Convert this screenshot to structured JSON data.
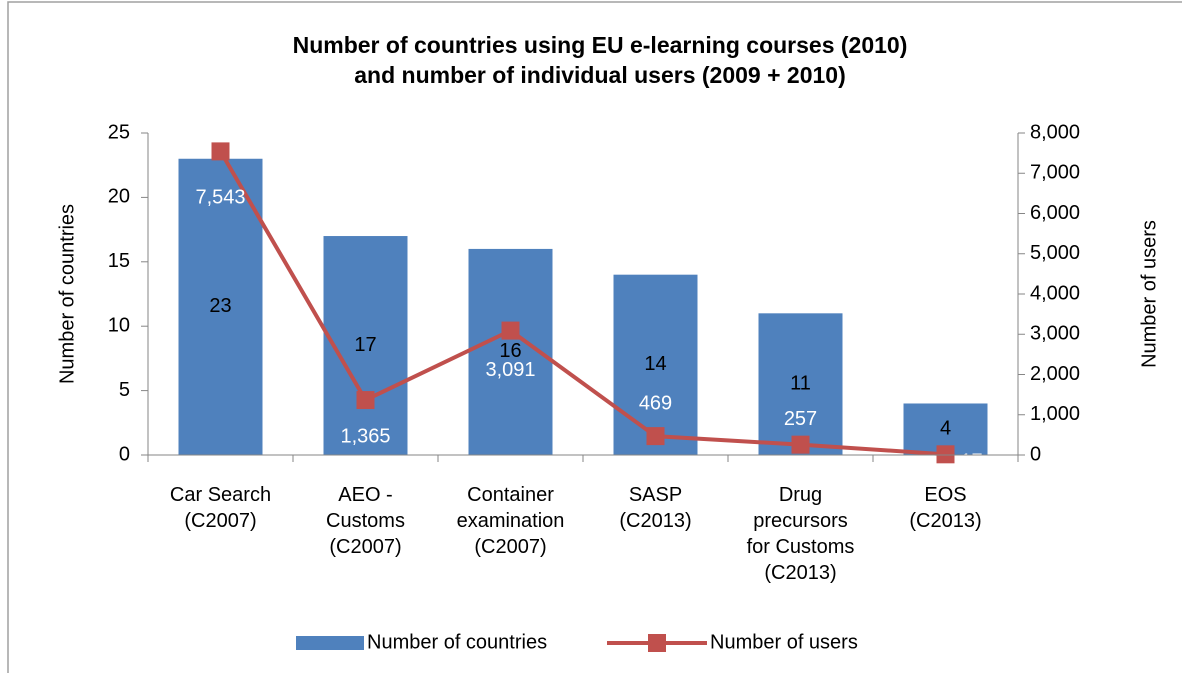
{
  "chart_data": {
    "type": "bar-line",
    "title": "Number of countries using EU e-learning courses (2010)\nand number of individual users (2009 + 2010)",
    "categories": [
      "Car Search\n(C2007)",
      "AEO -\nCustoms\n(C2007)",
      "Container\nexamination\n(C2007)",
      "SASP\n(C2013)",
      "Drug\nprecursors\nfor Customs\n(C2013)",
      "EOS\n(C2013)"
    ],
    "y_label": "Number of countries",
    "y2_label": "Number of users",
    "ylim": [
      0,
      25
    ],
    "yticks": [
      0,
      5,
      10,
      15,
      20,
      25
    ],
    "y2lim": [
      0,
      8000
    ],
    "y2ticks": [
      0,
      {
        "value": 1000,
        "label": "1,000"
      },
      {
        "value": 2000,
        "label": "2,000"
      },
      {
        "value": 3000,
        "label": "3,000"
      },
      {
        "value": 4000,
        "label": "4,000"
      },
      {
        "value": 5000,
        "label": "5,000"
      },
      {
        "value": 6000,
        "label": "6,000"
      },
      {
        "value": 7000,
        "label": "7,000"
      },
      {
        "value": 8000,
        "label": "8,000"
      }
    ],
    "legend": "bottom",
    "series": [
      {
        "name": "Number of countries",
        "type": "bar",
        "color": "#4f81bd",
        "values": [
          23,
          17,
          16,
          14,
          11,
          4
        ]
      },
      {
        "name": "Number of users",
        "type": "line",
        "axis": "y2",
        "color": "#c0504d",
        "values": [
          7543,
          1365,
          3091,
          469,
          257,
          17
        ],
        "value_labels": [
          "7,543",
          "1,365",
          "3,091",
          "469",
          "257",
          "17"
        ]
      }
    ]
  }
}
